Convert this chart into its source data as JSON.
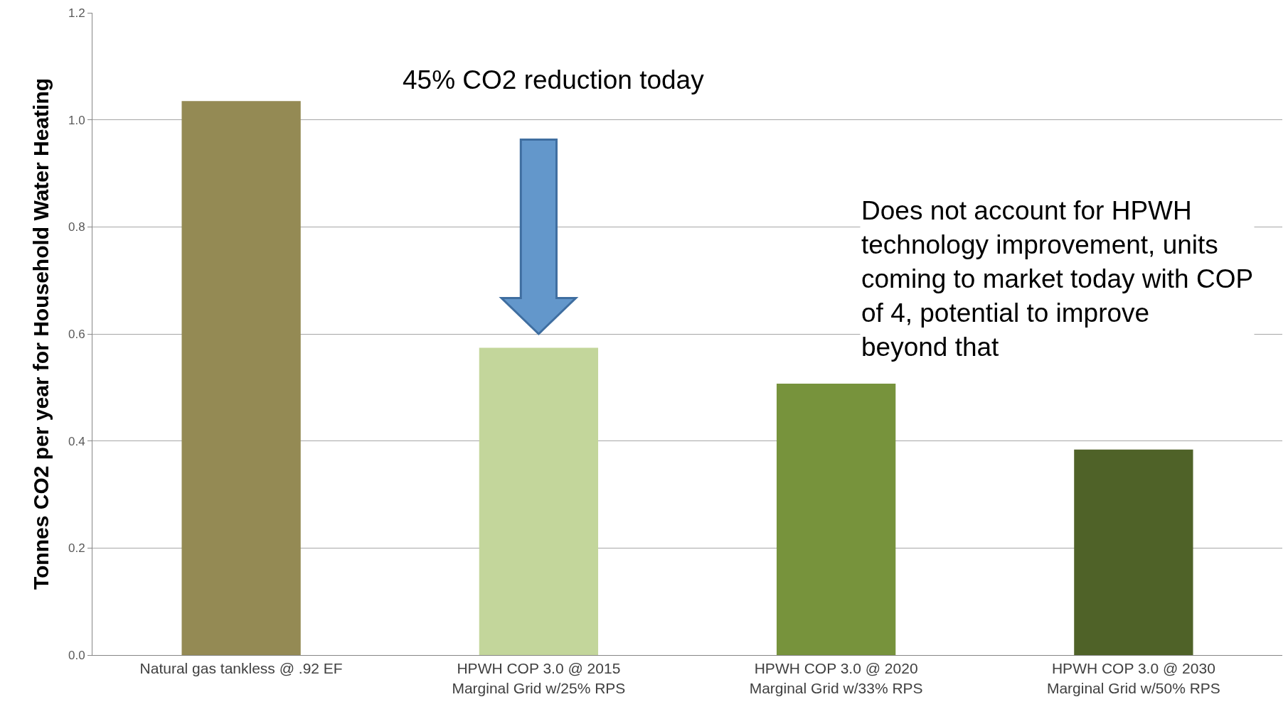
{
  "chart_data": {
    "type": "bar",
    "ylabel": "Tonnes CO2 per year for Household Water Heating",
    "categories": [
      "Natural gas tankless @ .92 EF",
      "HPWH COP 3.0 @ 2015\nMarginal Grid w/25% RPS",
      "HPWH COP 3.0 @ 2020\nMarginal Grid w/33% RPS",
      "HPWH COP 3.0 @ 2030\nMarginal Grid w/50% RPS"
    ],
    "values": [
      1.035,
      0.574,
      0.507,
      0.384
    ],
    "colors": [
      "#948a54",
      "#c3d69b",
      "#77933c",
      "#4f6228"
    ],
    "ylim": [
      0,
      1.2
    ],
    "yticks": [
      {
        "value": 0,
        "label": "0.0"
      },
      0.2,
      0.4,
      0.6,
      0.8,
      {
        "value": 1,
        "label": "1.0"
      },
      1.2
    ],
    "grid": "y",
    "legend": false,
    "annotations": [
      "45% CO2 reduction today",
      "Does not account for HPWH technology improvement, units coming to market today with COP of 4, potential to improve beyond that"
    ]
  }
}
